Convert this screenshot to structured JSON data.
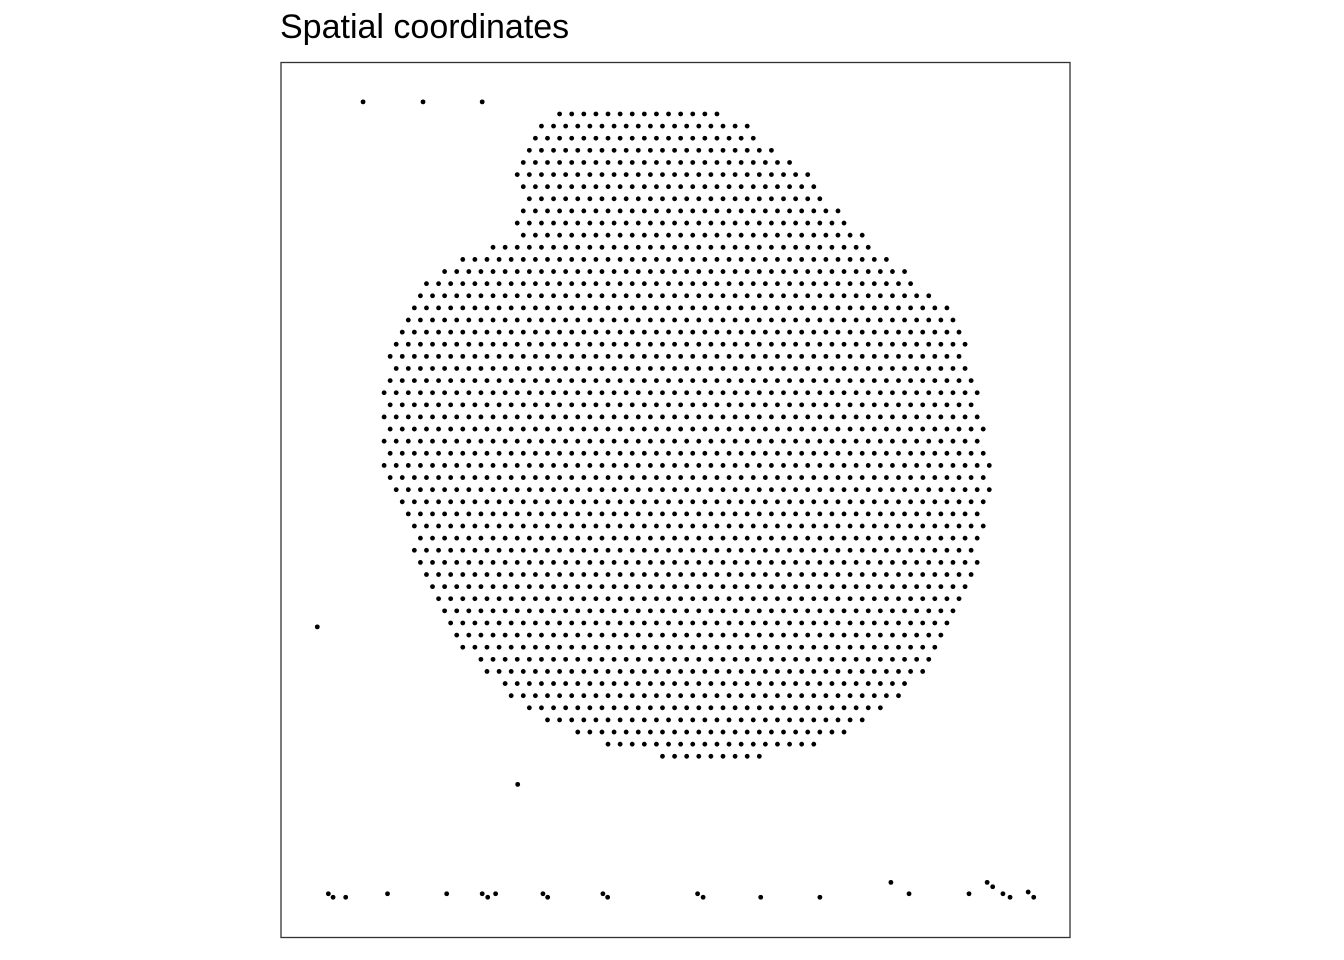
{
  "chart_data": {
    "type": "scatter",
    "title": "Spatial coordinates",
    "xlabel": "",
    "ylabel": "",
    "grid": false,
    "axes_visible": false,
    "point_color": "#000000",
    "panel_border_color": "#333333",
    "xlim": [
      0,
      1
    ],
    "ylim": [
      0,
      1
    ],
    "description_values": "Positions are in normalized spatial units (0-1 within the panel). Main tissue is a dense hexagonal spot lattice; listed outliers are the isolated spots.",
    "tissue_region": {
      "lattice": "hexagonal",
      "row_spacing": 0.01385,
      "col_spacing": 0.01534,
      "outline_polygon": [
        [
          0.355,
          0.955
        ],
        [
          0.53,
          0.955
        ],
        [
          0.587,
          0.93
        ],
        [
          0.66,
          0.88
        ],
        [
          0.745,
          0.8
        ],
        [
          0.845,
          0.72
        ],
        [
          0.87,
          0.68
        ],
        [
          0.89,
          0.6
        ],
        [
          0.9,
          0.53
        ],
        [
          0.89,
          0.45
        ],
        [
          0.87,
          0.39
        ],
        [
          0.845,
          0.35
        ],
        [
          0.815,
          0.3
        ],
        [
          0.76,
          0.255
        ],
        [
          0.7,
          0.225
        ],
        [
          0.6,
          0.205
        ],
        [
          0.48,
          0.207
        ],
        [
          0.385,
          0.225
        ],
        [
          0.31,
          0.26
        ],
        [
          0.25,
          0.305
        ],
        [
          0.195,
          0.38
        ],
        [
          0.16,
          0.46
        ],
        [
          0.13,
          0.53
        ],
        [
          0.125,
          0.6
        ],
        [
          0.135,
          0.66
        ],
        [
          0.16,
          0.72
        ],
        [
          0.195,
          0.76
        ],
        [
          0.24,
          0.785
        ],
        [
          0.295,
          0.8
        ],
        [
          0.3,
          0.84
        ],
        [
          0.298,
          0.885
        ],
        [
          0.32,
          0.925
        ]
      ]
    },
    "outlier_points": [
      [
        0.104,
        0.955
      ],
      [
        0.18,
        0.955
      ],
      [
        0.255,
        0.955
      ],
      [
        0.046,
        0.355
      ],
      [
        0.3,
        0.175
      ],
      [
        0.06,
        0.05
      ],
      [
        0.066,
        0.046
      ],
      [
        0.082,
        0.046
      ],
      [
        0.135,
        0.05
      ],
      [
        0.21,
        0.05
      ],
      [
        0.255,
        0.05
      ],
      [
        0.262,
        0.046
      ],
      [
        0.272,
        0.05
      ],
      [
        0.332,
        0.05
      ],
      [
        0.338,
        0.046
      ],
      [
        0.408,
        0.05
      ],
      [
        0.414,
        0.046
      ],
      [
        0.528,
        0.05
      ],
      [
        0.535,
        0.046
      ],
      [
        0.608,
        0.046
      ],
      [
        0.683,
        0.046
      ],
      [
        0.773,
        0.063
      ],
      [
        0.796,
        0.05
      ],
      [
        0.872,
        0.05
      ],
      [
        0.895,
        0.063
      ],
      [
        0.902,
        0.058
      ],
      [
        0.915,
        0.05
      ],
      [
        0.924,
        0.046
      ],
      [
        0.947,
        0.052
      ],
      [
        0.954,
        0.046
      ]
    ]
  }
}
